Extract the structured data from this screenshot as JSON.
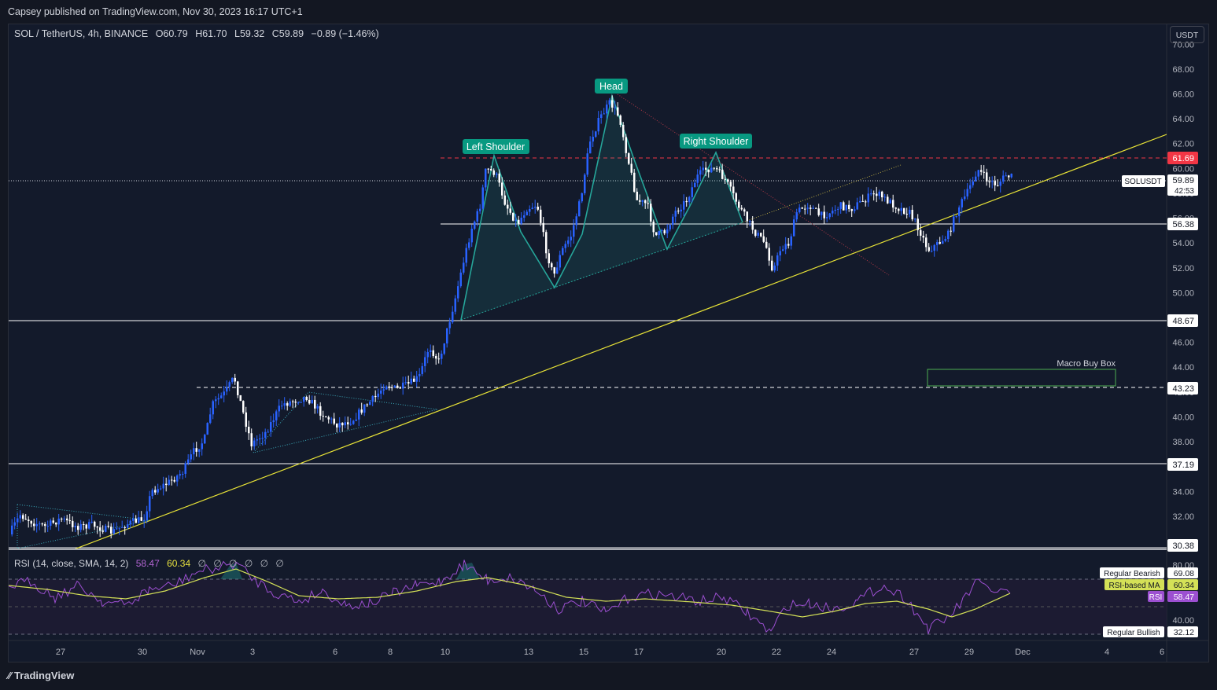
{
  "header": {
    "published": "Capsey published on TradingView.com, Nov 30, 2023 16:17 UTC+1"
  },
  "legend": {
    "symbol": "SOL / TetherUS, 4h, BINANCE",
    "open": "O60.79",
    "high": "H61.70",
    "low": "L59.32",
    "close": "C59.89",
    "change": "−0.89 (−1.46%)"
  },
  "currency_button": "USDT",
  "price_axis": {
    "ticks": [
      "70.00",
      "68.00",
      "66.00",
      "64.00",
      "62.00",
      "60.00",
      "58.00",
      "56.00",
      "54.00",
      "52.00",
      "50.00",
      "48.00",
      "46.00",
      "44.00",
      "42.00",
      "40.00",
      "38.00",
      "36.00",
      "34.00",
      "32.00"
    ],
    "range": [
      29.4,
      71.6
    ]
  },
  "price_tags": {
    "resistance": "61.69",
    "current": "59.89",
    "countdown": "42:53",
    "symbol": "SOLUSDT",
    "level_56": "56.38",
    "level_48": "48.67",
    "level_43": "43.23",
    "level_37": "37.19",
    "level_30": "30.38"
  },
  "time_axis": {
    "labels": [
      "27",
      "30",
      "Nov",
      "3",
      "6",
      "8",
      "10",
      "13",
      "15",
      "17",
      "20",
      "22",
      "24",
      "27",
      "29",
      "Dec",
      "4",
      "6"
    ]
  },
  "annotations": {
    "left_shoulder": "Left Shoulder",
    "head": "Head",
    "right_shoulder": "Right Shoulder",
    "macro_buy_box": "Macro Buy Box"
  },
  "rsi": {
    "title": "RSI (14, close, SMA, 14, 2)",
    "rsi_value": "58.47",
    "ma_value": "60.34",
    "placeholders": "∅ ∅ ∅ ∅ ∅ ∅",
    "axis_ticks": [
      "80.00",
      "40.00"
    ],
    "tag_bearish_label": "Regular Bearish",
    "tag_bearish_value": "69.08",
    "tag_ma_label": "RSI-based MA",
    "tag_ma_value": "60.34",
    "tag_rsi_label": "RSI",
    "tag_rsi_value": "58.47",
    "tag_bullish_label": "Regular Bullish",
    "tag_bullish_value": "32.12"
  },
  "colors": {
    "up": "#2962ff",
    "down": "#ffffff",
    "trendline": "#e8e337",
    "resistance": "#f23645",
    "rsi": "#9c4fd1",
    "rsi_ma": "#d4e157",
    "pattern": "#26a69a"
  },
  "footer": {
    "brand": "TradingView"
  }
}
